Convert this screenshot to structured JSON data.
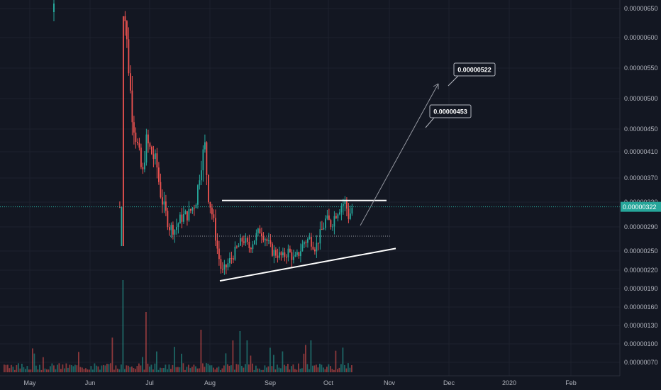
{
  "chart_data": {
    "type": "candlestick",
    "x_ticks": [
      "May",
      "Jun",
      "Jul",
      "Aug",
      "Sep",
      "Oct",
      "Nov",
      "Dec",
      "2020",
      "Feb"
    ],
    "y_ticks": [
      "0.00000650",
      "0.00000600",
      "0.00000550",
      "0.00000500",
      "0.00000450",
      "0.00000410",
      "0.00000370",
      "0.00000330",
      "0.00000290",
      "0.00000250",
      "0.00000220",
      "0.00000190",
      "0.00000160",
      "0.00000130",
      "0.00000100",
      "0.00000070"
    ],
    "y_scale": "log",
    "last_price": "0.00000322",
    "annotations": [
      {
        "label": "0.00000522",
        "type": "target-callout"
      },
      {
        "label": "0.00000453",
        "type": "target-callout"
      }
    ],
    "lines": [
      {
        "name": "resistance",
        "from": [
          "Aug",
          3.325e-06
        ],
        "to": [
          "Oct",
          3.325e-06
        ]
      },
      {
        "name": "support",
        "from": [
          "Aug",
          2.02e-06
        ],
        "to": [
          "Oct",
          2.54e-06
        ]
      },
      {
        "name": "level",
        "value": 2.74e-06,
        "style": "dotted"
      }
    ],
    "colors": {
      "up": "#26a69a",
      "down": "#ef5350",
      "bg": "#131722",
      "grid": "#1e222d",
      "price_line": "#26a69a",
      "trend": "#ffffff"
    }
  }
}
